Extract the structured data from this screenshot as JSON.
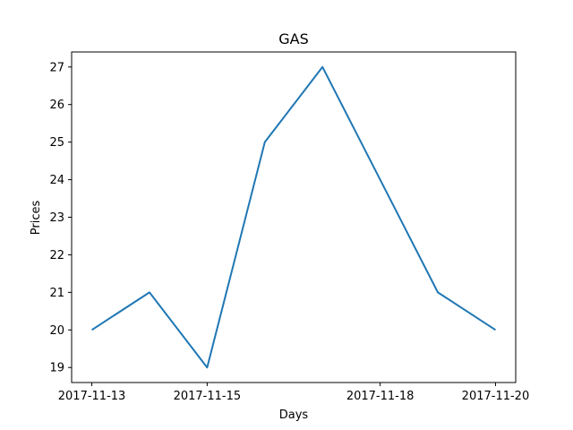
{
  "chart_data": {
    "type": "line",
    "title": "GAS",
    "xlabel": "Days",
    "ylabel": "Prices",
    "x": [
      "2017-11-13",
      "2017-11-14",
      "2017-11-15",
      "2017-11-16",
      "2017-11-17",
      "2017-11-18",
      "2017-11-19",
      "2017-11-20"
    ],
    "series": [
      {
        "values": [
          20,
          21,
          19,
          25,
          27,
          24,
          21,
          20
        ],
        "color": "#1f77b4"
      }
    ],
    "x_ticks": [
      "2017-11-13",
      "2017-11-15",
      "2017-11-18",
      "2017-11-20"
    ],
    "y_ticks": [
      19,
      20,
      21,
      22,
      23,
      24,
      25,
      26,
      27
    ],
    "xlim": [
      "2017-11-13",
      "2017-11-20"
    ],
    "ylim": [
      18.6,
      27.4
    ],
    "grid": false,
    "legend": "none"
  }
}
